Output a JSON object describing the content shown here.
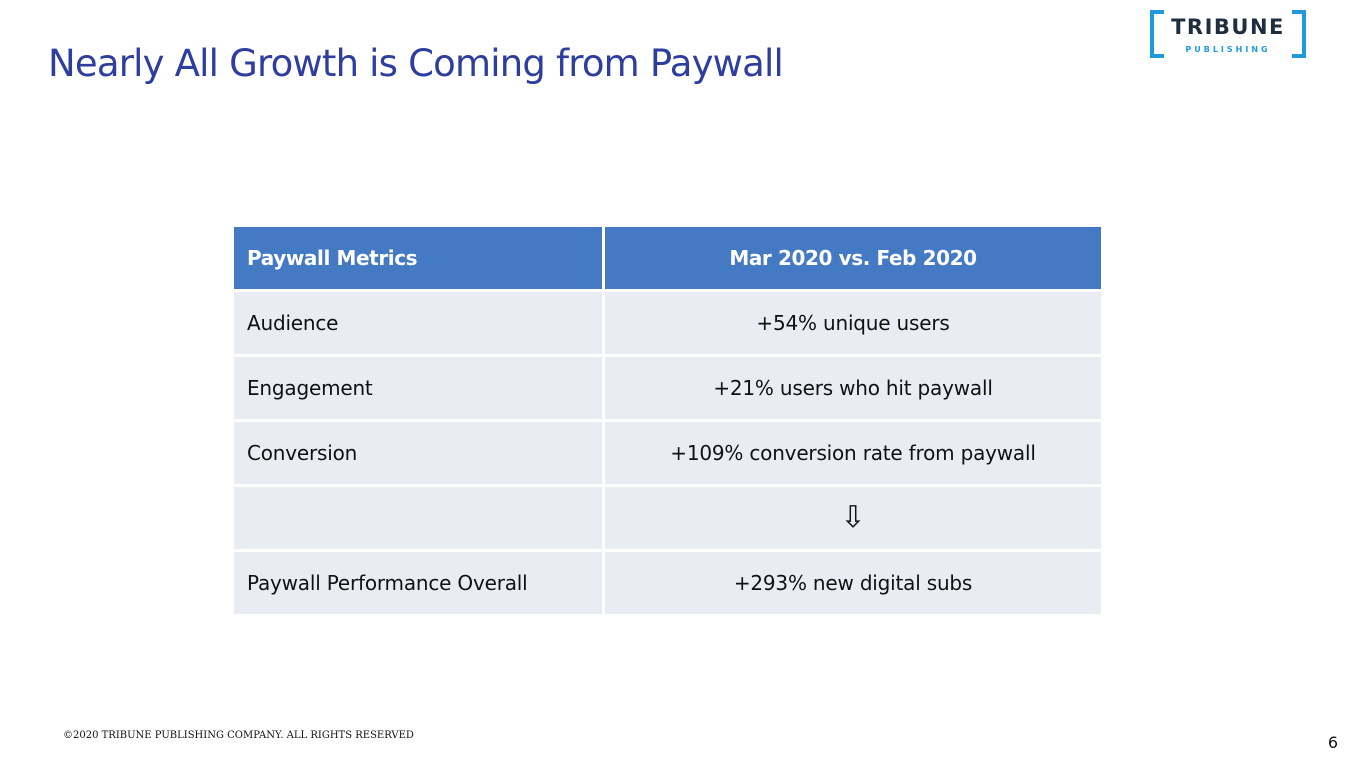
{
  "slide": {
    "title": "Nearly All Growth is Coming from Paywall",
    "page_number": "6",
    "footer": "©2020 TRIBUNE PUBLISHING COMPANY. ALL RIGHTS RESERVED"
  },
  "logo": {
    "main_text": "TRIBUNE",
    "sub_text": "PUBLISHING",
    "bracket_color": "#1f9bdb"
  },
  "table": {
    "headers": [
      "Paywall Metrics",
      "Mar 2020 vs. Feb 2020"
    ],
    "rows": [
      {
        "metric": "Audience",
        "value": "+54% unique users"
      },
      {
        "metric": "Engagement",
        "value": "+21% users who hit paywall"
      },
      {
        "metric": "Conversion",
        "value": "+109% conversion rate from paywall"
      },
      {
        "metric": "",
        "value": "⇩",
        "icon": "down-arrow-icon"
      },
      {
        "metric": "Paywall Performance Overall",
        "value": "+293% new digital subs"
      }
    ]
  },
  "colors": {
    "title": "#2e3e9f",
    "header_bg": "#4479c4",
    "row_bg": "#e9ecf3"
  }
}
